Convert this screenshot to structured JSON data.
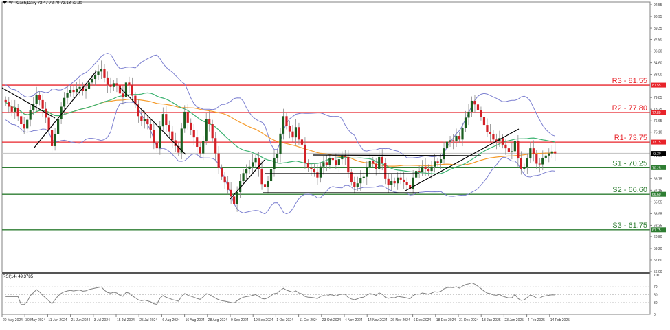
{
  "header": {
    "symbol": "WTICash",
    "timeframe": "Daily",
    "label": "WTICash,Daily  72.47 72.70 72.18 72.20",
    "open": 72.47,
    "high": 72.7,
    "low": 72.18,
    "close": 72.2
  },
  "rsi_panel": {
    "label": "RSI(14) 49.3785",
    "value": 49.3785,
    "levels": [
      70,
      50,
      30
    ],
    "axis_labels": [
      "100",
      "70",
      "50",
      "30",
      "0"
    ]
  },
  "colors": {
    "resistance": "#e8232a",
    "support": "#2e7d32",
    "bull_candle": "#1b5e20",
    "bear_candle": "#d32027",
    "bollinger": "#7b7fd0",
    "ma_fast": "#3cb371",
    "ma_slow": "#f59b2b",
    "current_price": "#000000",
    "rsi_line": "#808080",
    "trendline": "#000000"
  },
  "levels": [
    {
      "id": "R3",
      "label": "R3 - 81.55",
      "price": 81.55,
      "tag": "81.55",
      "type": "resistance"
    },
    {
      "id": "R2",
      "label": "R2 - 77.80",
      "price": 77.8,
      "tag": "77.80",
      "type": "resistance"
    },
    {
      "id": "R1",
      "label": "R1- 73.75",
      "price": 73.75,
      "tag": "73.75",
      "type": "resistance"
    },
    {
      "id": "S1",
      "label": "S1 - 70.25",
      "price": 70.25,
      "tag": "70.25",
      "type": "support"
    },
    {
      "id": "S2",
      "label": "S2 - 66.60",
      "price": 66.6,
      "tag": "66.60",
      "type": "support"
    },
    {
      "id": "S3",
      "label": "S3 - 61.75",
      "price": 61.75,
      "tag": "61.75",
      "type": "support"
    }
  ],
  "current_price": {
    "value": 72.2,
    "tag": "72.20"
  },
  "chart_data": {
    "type": "candlestick",
    "title": "WTICash,Daily",
    "xlabel": "",
    "ylabel": "",
    "ylim": [
      56.0,
      92.55
    ],
    "y_ticks": [
      "92.55",
      "90.95",
      "89.35",
      "87.80",
      "86.20",
      "84.60",
      "83.00",
      "79.85",
      "78.25",
      "76.65",
      "75.10",
      "71.90",
      "68.75",
      "67.15",
      "65.55",
      "63.95",
      "62.35",
      "60.80",
      "59.20",
      "57.60",
      "56.00"
    ],
    "x_ticks": [
      "20 May 2024",
      "30 May 2024",
      "11 Jun 2024",
      "21 Jun 2024",
      "3 Jul 2024",
      "15 Jul 2024",
      "25 Jul 2024",
      "6 Aug 2024",
      "16 Aug 2024",
      "28 Aug 2024",
      "9 Sep 2024",
      "19 Sep 2024",
      "1 Oct 2024",
      "11 Oct 2024",
      "23 Oct 2024",
      "4 Nov 2024",
      "14 Nov 2024",
      "26 Nov 2024",
      "6 Dec 2024",
      "18 Dec 2024",
      "31 Dec 2024",
      "13 Jan 2025",
      "23 Jan 2025",
      "4 Feb 2025",
      "14 Feb 2025"
    ],
    "grid": false,
    "legend": "none",
    "last_ohlc": {
      "open": 72.47,
      "high": 72.7,
      "low": 72.18,
      "close": 72.2
    },
    "horizontal_levels": [
      {
        "name": "R3",
        "value": 81.55
      },
      {
        "name": "R2",
        "value": 77.8
      },
      {
        "name": "R1",
        "value": 73.75
      },
      {
        "name": "S1",
        "value": 70.25
      },
      {
        "name": "S2",
        "value": 66.6
      },
      {
        "name": "S3",
        "value": 61.75
      }
    ],
    "close_series_approx": [
      79.2,
      78.6,
      77.9,
      78.4,
      77.3,
      76.2,
      75.6,
      76.8,
      78.1,
      79.0,
      80.2,
      79.5,
      78.3,
      77.1,
      75.4,
      73.2,
      74.8,
      76.9,
      78.6,
      79.8,
      80.5,
      80.9,
      80.6,
      81.1,
      81.3,
      80.8,
      81.0,
      81.9,
      82.4,
      82.9,
      83.4,
      83.8,
      82.6,
      81.6,
      81.3,
      81.8,
      81.5,
      80.4,
      79.9,
      81.9,
      81.6,
      80.1,
      78.9,
      77.3,
      76.6,
      76.9,
      76.2,
      75.4,
      73.6,
      72.9,
      75.9,
      77.6,
      76.1,
      75.2,
      74.0,
      73.2,
      72.3,
      75.6,
      77.9,
      76.4,
      75.4,
      74.4,
      73.1,
      72.2,
      73.9,
      76.9,
      76.2,
      74.3,
      72.2,
      70.2,
      69.0,
      68.2,
      67.2,
      66.3,
      65.3,
      66.9,
      68.4,
      69.5,
      70.0,
      70.4,
      71.0,
      71.6,
      70.1,
      68.0,
      67.6,
      68.4,
      70.0,
      71.6,
      72.1,
      74.9,
      77.3,
      76.0,
      75.2,
      74.4,
      75.8,
      74.1,
      73.4,
      70.9,
      70.2,
      70.0,
      69.6,
      68.9,
      70.4,
      71.0,
      70.6,
      71.6,
      71.3,
      70.6,
      71.4,
      71.9,
      71.7,
      69.6,
      68.3,
      67.6,
      68.1,
      68.8,
      69.0,
      70.3,
      71.2,
      70.8,
      70.1,
      71.7,
      70.9,
      68.7,
      67.9,
      68.4,
      68.1,
      68.9,
      68.6,
      68.3,
      67.9,
      67.3,
      68.9,
      69.8,
      69.7,
      70.4,
      70.1,
      69.8,
      70.4,
      71.1,
      70.9,
      71.4,
      72.9,
      73.8,
      74.0,
      73.9,
      74.6,
      74.1,
      75.7,
      77.1,
      77.9,
      79.4,
      78.9,
      78.1,
      77.2,
      76.1,
      75.1,
      74.8,
      74.1,
      73.9,
      74.3,
      73.4,
      72.9,
      72.4,
      72.5,
      73.9,
      71.5,
      70.1,
      70.3,
      71.5,
      72.9,
      72.1,
      70.8,
      70.7,
      71.6,
      71.9,
      72.2,
      72.47,
      72.2
    ],
    "rsi": {
      "period": 14,
      "value": 49.3785,
      "levels": [
        70,
        50,
        30
      ],
      "ylim": [
        0,
        100
      ]
    },
    "indicators": [
      "Bollinger Bands",
      "Moving Average (fast, green)",
      "Moving Average (slow, orange)",
      "Trendlines (black)"
    ]
  }
}
